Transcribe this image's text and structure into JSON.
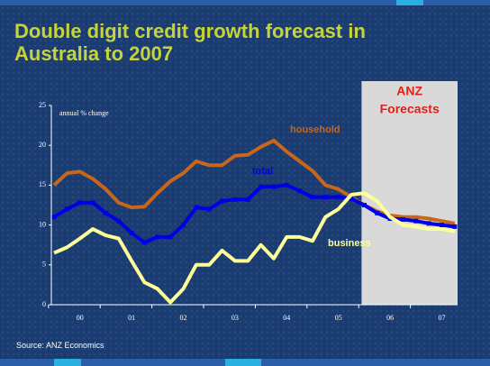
{
  "chart_data": {
    "type": "line",
    "title": "Double digit credit growth forecast in Australia to 2007",
    "y_label": "annual % change",
    "source": "Source: ANZ Economics",
    "forecast_label": [
      "ANZ",
      "Forecasts"
    ],
    "forecast_from": 24,
    "categories": [
      null,
      null,
      "00",
      null,
      null,
      null,
      "01",
      null,
      null,
      null,
      "02",
      null,
      null,
      null,
      "03",
      null,
      null,
      null,
      "04",
      null,
      null,
      null,
      "05",
      null,
      null,
      null,
      "06",
      null,
      null,
      null,
      "07",
      null
    ],
    "ylim": [
      0,
      25
    ],
    "yticks": [
      0,
      5,
      10,
      15,
      20,
      25
    ],
    "series": [
      {
        "name": "household",
        "color": "#c8661a",
        "markers": false,
        "values": [
          15.0,
          16.5,
          16.7,
          15.8,
          14.5,
          12.8,
          12.2,
          12.3,
          14.0,
          15.5,
          16.5,
          18.0,
          17.5,
          17.5,
          18.7,
          18.8,
          19.8,
          20.6,
          19.2,
          18.0,
          16.8,
          15.0,
          14.5,
          13.5,
          12.5,
          11.7,
          11.2,
          11.0,
          11.0,
          10.8,
          10.5,
          10.2
        ]
      },
      {
        "name": "total",
        "color": "#0000e6",
        "markers": true,
        "values": [
          11.0,
          12.0,
          12.8,
          12.8,
          11.5,
          10.5,
          9.0,
          7.8,
          8.5,
          8.5,
          10.0,
          12.2,
          12.0,
          13.0,
          13.2,
          13.2,
          14.8,
          14.8,
          15.0,
          14.3,
          13.5,
          13.5,
          13.5,
          13.3,
          12.5,
          11.5,
          10.8,
          10.7,
          10.5,
          10.2,
          10.0,
          9.8
        ]
      },
      {
        "name": "business",
        "color": "#ffff99",
        "markers": false,
        "values": [
          6.5,
          7.2,
          8.3,
          9.5,
          8.7,
          8.3,
          5.5,
          2.8,
          2.0,
          0.3,
          2.0,
          5.0,
          5.0,
          6.8,
          5.5,
          5.5,
          7.5,
          5.8,
          8.5,
          8.5,
          8.0,
          11.0,
          12.0,
          13.8,
          14.0,
          13.0,
          11.0,
          10.0,
          9.8,
          9.5,
          9.5,
          9.2
        ]
      }
    ]
  }
}
